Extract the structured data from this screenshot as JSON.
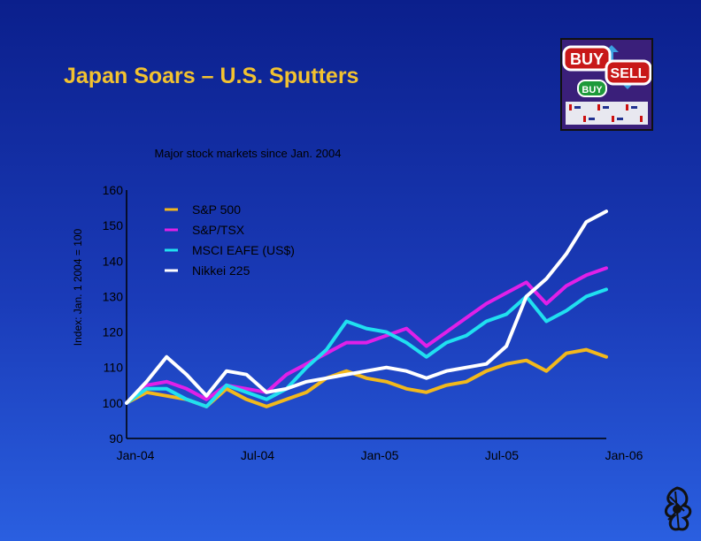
{
  "page": {
    "title": "Japan Soars – U.S. Sputters"
  },
  "logo": {
    "icon": "buy-sell-icon",
    "labels": [
      "BUY",
      "SELL",
      "BUY"
    ]
  },
  "chart_data": {
    "type": "line",
    "subtitle": "Major stock markets since Jan. 2004",
    "ylabel": "Index: Jan. 1 2004 = 100",
    "xlabel": "",
    "ylim": [
      90,
      160
    ],
    "yticks": [
      90,
      100,
      110,
      120,
      130,
      140,
      150,
      160
    ],
    "xticks": [
      "Jan-04",
      "Jul-04",
      "Jan-05",
      "Jul-05",
      "Jan-06"
    ],
    "grid": false,
    "legend_position": "top-left",
    "x": [
      "Jan-04",
      "Feb-04",
      "Mar-04",
      "Apr-04",
      "May-04",
      "Jun-04",
      "Jul-04",
      "Aug-04",
      "Sep-04",
      "Oct-04",
      "Nov-04",
      "Dec-04",
      "Jan-05",
      "Feb-05",
      "Mar-05",
      "Apr-05",
      "May-05",
      "Jun-05",
      "Jul-05",
      "Aug-05",
      "Sep-05",
      "Oct-05",
      "Nov-05",
      "Dec-05",
      "Jan-06"
    ],
    "series": [
      {
        "name": "S&P 500",
        "color": "#f2b81c",
        "values": [
          100,
          103,
          102,
          101,
          99,
          104,
          101,
          99,
          101,
          103,
          107,
          109,
          107,
          106,
          104,
          103,
          105,
          106,
          109,
          111,
          112,
          109,
          114,
          115,
          113
        ]
      },
      {
        "name": "S&P/TSX",
        "color": "#e020e8",
        "values": [
          100,
          105,
          106,
          104,
          101,
          105,
          104,
          103,
          108,
          111,
          114,
          117,
          117,
          119,
          121,
          116,
          120,
          124,
          128,
          131,
          134,
          128,
          133,
          136,
          138
        ]
      },
      {
        "name": "MSCI EAFE (US$)",
        "color": "#20e0f0",
        "values": [
          100,
          104,
          104,
          101,
          99,
          105,
          103,
          101,
          104,
          110,
          115,
          123,
          121,
          120,
          117,
          113,
          117,
          119,
          123,
          125,
          130,
          123,
          126,
          130,
          132
        ]
      },
      {
        "name": "Nikkei 225",
        "color": "#ffffff",
        "values": [
          100,
          106,
          113,
          108,
          102,
          109,
          108,
          103,
          104,
          106,
          107,
          108,
          109,
          110,
          109,
          107,
          109,
          110,
          111,
          116,
          130,
          135,
          142,
          151,
          154
        ]
      }
    ]
  }
}
